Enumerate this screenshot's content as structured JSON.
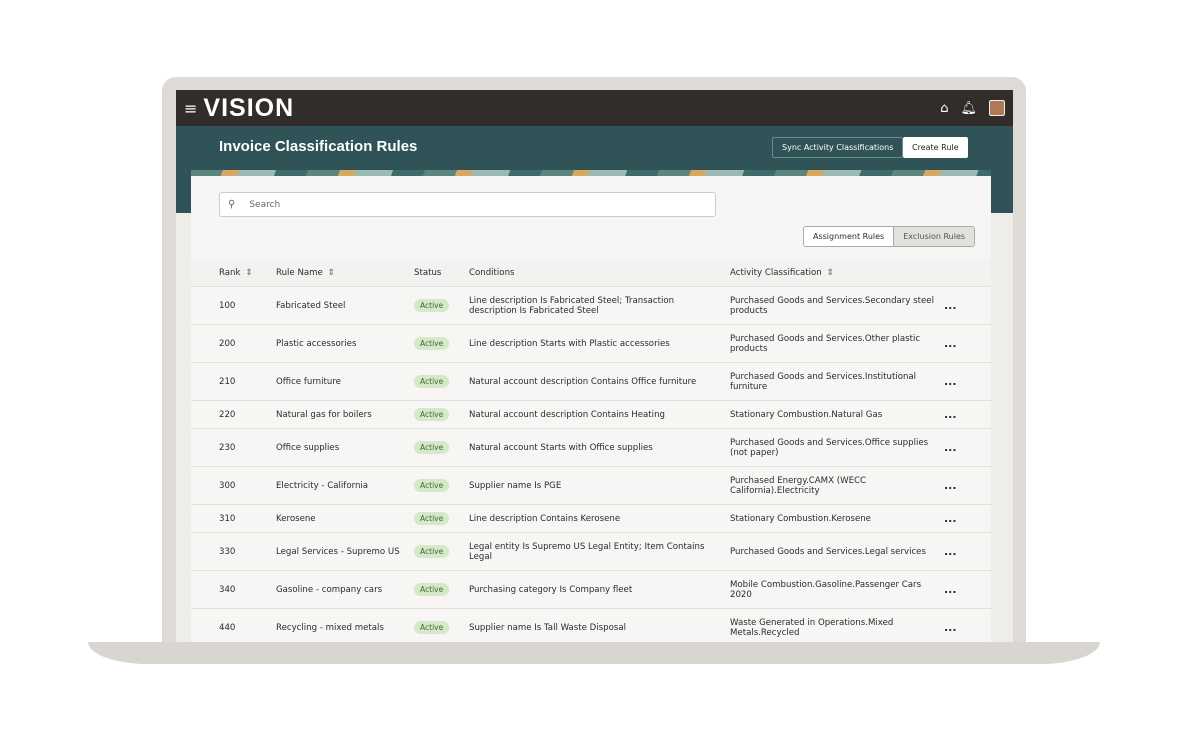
{
  "app": {
    "logo": "VISION",
    "menu_icon": "hamburger-icon",
    "home_icon": "home-icon",
    "bell_icon": "bell-icon"
  },
  "page": {
    "title": "Invoice Classification Rules",
    "sync_label": "Sync Activity Classifications",
    "create_label": "Create Rule"
  },
  "search": {
    "placeholder": "Search"
  },
  "toggle": {
    "assignment": "Assignment Rules",
    "exclusion": "Exclusion Rules"
  },
  "columns": [
    "Rank",
    "Rule Name",
    "Status",
    "Conditions",
    "Activity Classification"
  ],
  "rows": [
    {
      "rank": "100",
      "name": "Fabricated Steel",
      "status": "Active",
      "conditions": "Line description Is Fabricated Steel; Transaction description Is Fabricated Steel",
      "activity": "Purchased Goods and Services.Secondary steel products"
    },
    {
      "rank": "200",
      "name": "Plastic accessories",
      "status": "Active",
      "conditions": "Line description Starts with Plastic accessories",
      "activity": "Purchased Goods and Services.Other plastic products"
    },
    {
      "rank": "210",
      "name": "Office furniture",
      "status": "Active",
      "conditions": "Natural account description Contains Office furniture",
      "activity": "Purchased Goods and Services.Institutional furniture"
    },
    {
      "rank": "220",
      "name": "Natural gas for boilers",
      "status": "Active",
      "conditions": "Natural account description Contains Heating",
      "activity": "Stationary Combustion.Natural Gas"
    },
    {
      "rank": "230",
      "name": "Office supplies",
      "status": "Active",
      "conditions": "Natural account Starts with Office supplies",
      "activity": "Purchased Goods and Services.Office supplies (not paper)"
    },
    {
      "rank": "300",
      "name": "Electricity - California",
      "status": "Active",
      "conditions": "Supplier name Is PGE",
      "activity": "Purchased Energy.CAMX (WECC California).Electricity"
    },
    {
      "rank": "310",
      "name": "Kerosene",
      "status": "Active",
      "conditions": "Line description Contains Kerosene",
      "activity": "Stationary Combustion.Kerosene"
    },
    {
      "rank": "330",
      "name": "Legal Services - Supremo US",
      "status": "Active",
      "conditions": "Legal entity Is Supremo US Legal Entity; Item Contains Legal",
      "activity": "Purchased Goods and Services.Legal services"
    },
    {
      "rank": "340",
      "name": "Gasoline - company cars",
      "status": "Active",
      "conditions": "Purchasing category Is Company fleet",
      "activity": "Mobile Combustion.Gasoline.Passenger Cars 2020"
    },
    {
      "rank": "440",
      "name": "Recycling - mixed metals",
      "status": "Active",
      "conditions": "Supplier name Is Tall Waste Disposal",
      "activity": "Waste Generated in Operations.Mixed Metals.Recycled"
    }
  ],
  "row_action": "..."
}
